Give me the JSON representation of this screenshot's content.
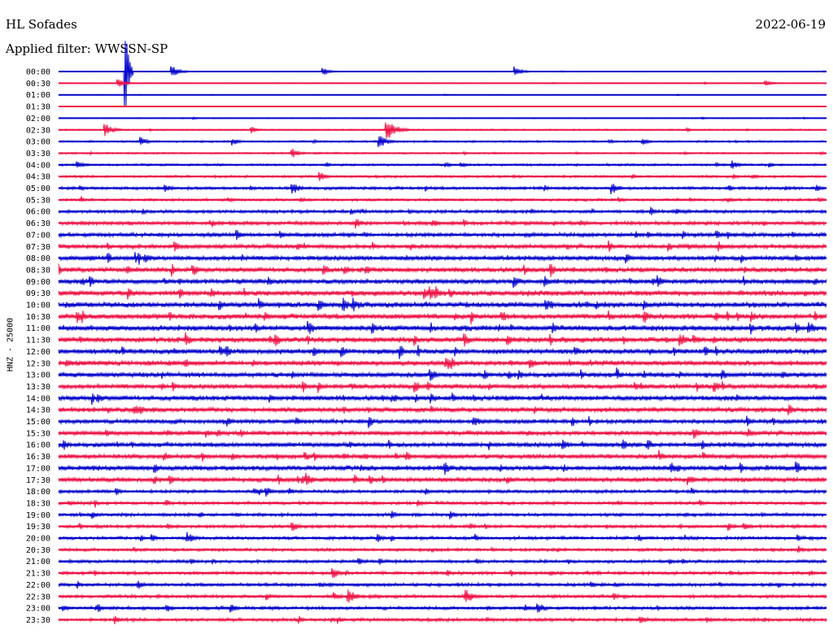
{
  "header": {
    "station": "HL Sofades",
    "date": "2022-06-19",
    "filter": "Applied filter: WWSSN-SP"
  },
  "chart_data": {
    "type": "line",
    "ylabel": "HNZ - 25000",
    "colors": [
      "#0000cc",
      "#ee1144"
    ],
    "rows": [
      "00:00",
      "00:30",
      "01:00",
      "01:30",
      "02:00",
      "02:30",
      "03:00",
      "03:30",
      "04:00",
      "04:30",
      "05:00",
      "05:30",
      "06:00",
      "06:30",
      "07:00",
      "07:30",
      "08:00",
      "08:30",
      "09:00",
      "09:30",
      "10:00",
      "10:30",
      "11:00",
      "11:30",
      "12:00",
      "12:30",
      "13:00",
      "13:30",
      "14:00",
      "14:30",
      "15:00",
      "15:30",
      "16:00",
      "16:30",
      "17:00",
      "17:30",
      "18:00",
      "18:30",
      "19:00",
      "19:30",
      "20:00",
      "20:30",
      "21:00",
      "21:30",
      "22:00",
      "22:30",
      "23:00",
      "23:30"
    ],
    "noise_level": [
      0.6,
      0.6,
      0.5,
      0.5,
      0.7,
      1.0,
      1.3,
      1.2,
      1.5,
      1.6,
      2.0,
      1.8,
      2.2,
      2.6,
      2.8,
      3.0,
      3.2,
      3.4,
      3.4,
      3.6,
      3.8,
      3.8,
      3.8,
      3.8,
      3.6,
      3.4,
      3.4,
      3.4,
      3.4,
      3.3,
      3.0,
      3.0,
      3.2,
      3.2,
      3.4,
      3.2,
      2.2,
      2.2,
      2.2,
      2.2,
      2.2,
      2.1,
      2.1,
      2.2,
      2.2,
      2.2,
      2.2,
      2.2
    ],
    "events": [
      {
        "row": 0,
        "minute": 2.6,
        "amp": 60
      },
      {
        "row": 0,
        "minute": 4.4,
        "amp": 8
      },
      {
        "row": 0,
        "minute": 10.3,
        "amp": 6
      },
      {
        "row": 0,
        "minute": 17.8,
        "amp": 7
      },
      {
        "row": 1,
        "minute": 2.3,
        "amp": 6
      },
      {
        "row": 1,
        "minute": 27.6,
        "amp": 4
      },
      {
        "row": 5,
        "minute": 1.8,
        "amp": 9
      },
      {
        "row": 5,
        "minute": 12.8,
        "amp": 14
      },
      {
        "row": 5,
        "minute": 7.5,
        "amp": 5
      },
      {
        "row": 6,
        "minute": 12.5,
        "amp": 9
      },
      {
        "row": 6,
        "minute": 3.2,
        "amp": 6
      },
      {
        "row": 6,
        "minute": 6.8,
        "amp": 5
      },
      {
        "row": 6,
        "minute": 22.8,
        "amp": 5
      },
      {
        "row": 7,
        "minute": 9.1,
        "amp": 7
      },
      {
        "row": 8,
        "minute": 0.7,
        "amp": 6
      },
      {
        "row": 8,
        "minute": 26.3,
        "amp": 6
      },
      {
        "row": 9,
        "minute": 10.2,
        "amp": 6
      },
      {
        "row": 10,
        "minute": 9.1,
        "amp": 9
      },
      {
        "row": 10,
        "minute": 21.6,
        "amp": 8
      },
      {
        "row": 13,
        "minute": 11.6,
        "amp": 7
      },
      {
        "row": 13,
        "minute": 14.6,
        "amp": 6
      },
      {
        "row": 21,
        "minute": 17.3,
        "amp": 8
      },
      {
        "row": 22,
        "minute": 9.8,
        "amp": 8
      },
      {
        "row": 24,
        "minute": 6.3,
        "amp": 8
      },
      {
        "row": 27,
        "minute": 13.9,
        "amp": 8
      },
      {
        "row": 28,
        "minute": 1.5,
        "amp": 7
      },
      {
        "row": 32,
        "minute": 19.7,
        "amp": 7
      },
      {
        "row": 36,
        "minute": 8.1,
        "amp": 7
      },
      {
        "row": 38,
        "minute": 15.3,
        "amp": 6
      },
      {
        "row": 39,
        "minute": 9.1,
        "amp": 7
      },
      {
        "row": 40,
        "minute": 5.0,
        "amp": 8
      },
      {
        "row": 43,
        "minute": 10.7,
        "amp": 8
      },
      {
        "row": 44,
        "minute": 3.1,
        "amp": 6
      },
      {
        "row": 45,
        "minute": 11.3,
        "amp": 10
      },
      {
        "row": 45,
        "minute": 15.9,
        "amp": 10
      },
      {
        "row": 46,
        "minute": 4.2,
        "amp": 6
      },
      {
        "row": 46,
        "minute": 18.7,
        "amp": 8
      },
      {
        "row": 47,
        "minute": 22.7,
        "amp": 7
      }
    ]
  }
}
